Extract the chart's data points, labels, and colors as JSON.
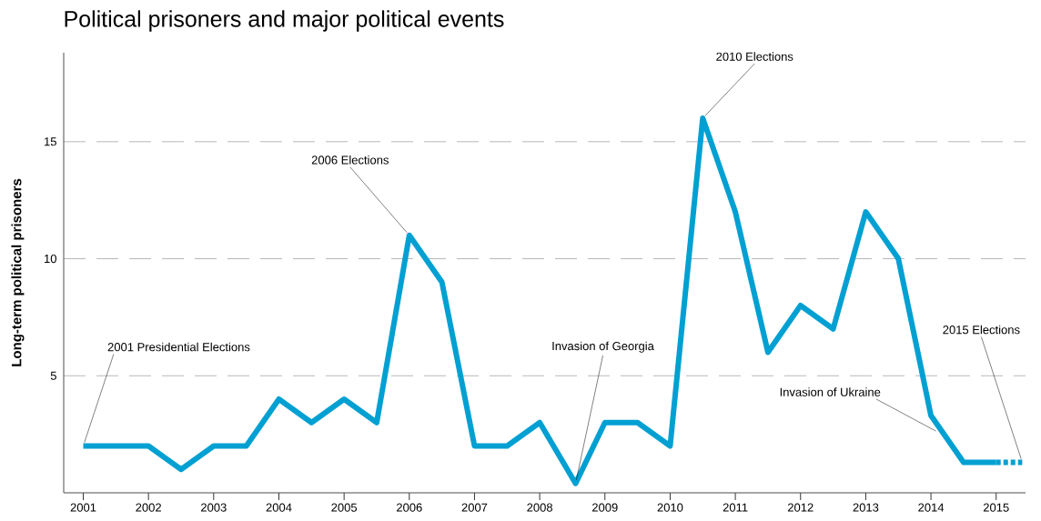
{
  "chart_data": {
    "type": "line",
    "title": "Political prisoners and major political events",
    "ylabel": "Long-term political prisoners",
    "xlim": [
      2000.7,
      2015.45
    ],
    "xticks": [
      2001,
      2002,
      2003,
      2004,
      2005,
      2006,
      2007,
      2008,
      2009,
      2010,
      2011,
      2012,
      2013,
      2014,
      2015
    ],
    "ylim": [
      0,
      18.8
    ],
    "yticks": [
      5,
      10,
      15
    ],
    "grid": "y",
    "marker": "none",
    "line_style": "solid",
    "series": [
      {
        "color": "#00a0d2",
        "x": [
          2001,
          2001.5,
          2002,
          2002.5,
          2003,
          2003.5,
          2004,
          2004.5,
          2005,
          2005.5,
          2006,
          2006.5,
          2007,
          2007.5,
          2008,
          2008.55,
          2009,
          2009.5,
          2010,
          2010.5,
          2011,
          2011.5,
          2012,
          2012.5,
          2013,
          2013.5,
          2014,
          2014.5,
          2015
        ],
        "values": [
          2,
          2,
          2,
          1,
          2,
          2,
          4,
          3,
          4,
          3,
          11,
          9,
          2,
          2,
          3,
          0.4,
          3,
          3,
          2,
          16,
          12,
          6,
          8,
          7,
          12,
          10,
          3.3,
          1.3,
          1.3
        ]
      },
      {
        "color": "#00a0d2",
        "x": [
          2015,
          2015.4
        ],
        "values": [
          1.3,
          1.3
        ],
        "line_style": "dashed"
      }
    ],
    "annotations": [
      {
        "text": "2001 Presidential Elections",
        "x": 2001,
        "y": 2
      },
      {
        "text": "2006 Elections",
        "x": 2006,
        "y": 11
      },
      {
        "text": "Invasion of Georgia",
        "x": 2008.55,
        "y": 0.4
      },
      {
        "text": "2010 Elections",
        "x": 2010.5,
        "y": 16
      },
      {
        "text": "Invasion of Ukraine",
        "x": 2014.1,
        "y": 2.6
      },
      {
        "text": "2015 Elections",
        "x": 2015.4,
        "y": 1.3
      }
    ]
  }
}
